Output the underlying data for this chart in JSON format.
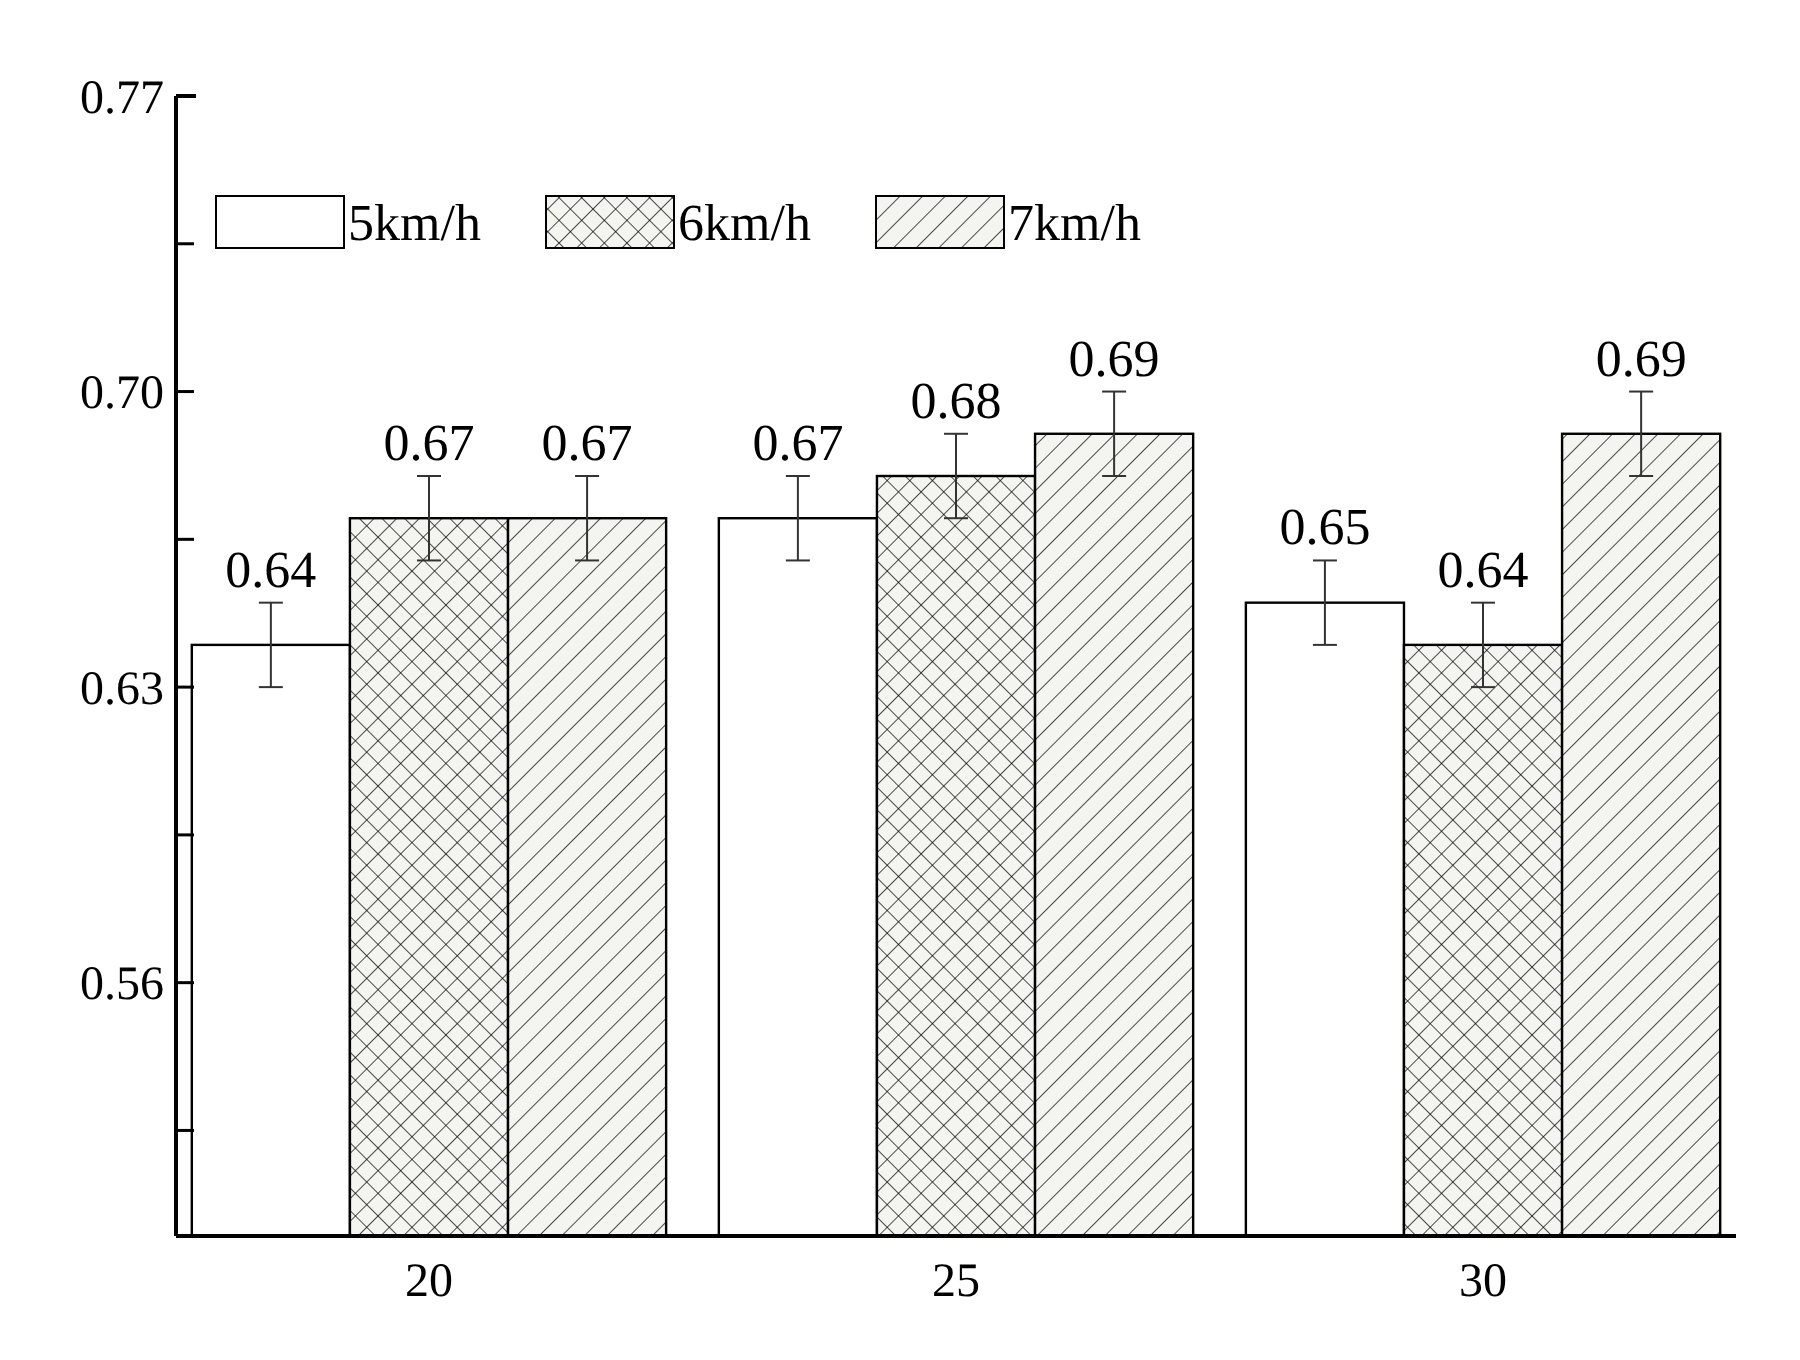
{
  "chart_data": {
    "type": "bar",
    "categories": [
      "20",
      "25",
      "30"
    ],
    "series": [
      {
        "name": "5km/h",
        "color": "#ffffff",
        "values": [
          0.64,
          0.67,
          0.65
        ],
        "errors": [
          0.01,
          0.01,
          0.01
        ]
      },
      {
        "name": "6km/h",
        "color": "#000000",
        "values": [
          0.67,
          0.68,
          0.64
        ],
        "errors": [
          0.01,
          0.01,
          0.01
        ]
      },
      {
        "name": "7km/h",
        "color": "#000000",
        "values": [
          0.67,
          0.69,
          0.69
        ],
        "errors": [
          0.01,
          0.01,
          0.01
        ]
      }
    ],
    "ylim": [
      0.5,
      0.77
    ],
    "yticks": [
      {
        "value": 0.525,
        "label": null
      },
      {
        "value": 0.56,
        "label": "0.56"
      },
      {
        "value": 0.595,
        "label": null
      },
      {
        "value": 0.63,
        "label": "0.63"
      },
      {
        "value": 0.665,
        "label": null
      },
      {
        "value": 0.7,
        "label": "0.70"
      },
      {
        "value": 0.735,
        "label": null
      },
      {
        "value": 0.77,
        "label": "0.77"
      }
    ],
    "data_labels": true,
    "legend": "top left",
    "grid": false
  }
}
